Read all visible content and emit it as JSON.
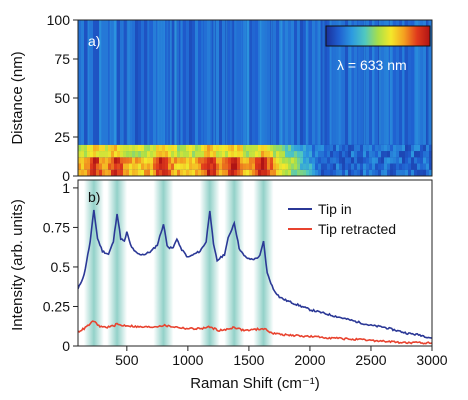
{
  "chart_data": [
    {
      "type": "heatmap",
      "panel_label": "a)",
      "ylabel": "Distance (nm)",
      "xlim": [
        100,
        3000
      ],
      "ylim": [
        0,
        100
      ],
      "yticks": [
        0,
        25,
        50,
        75,
        100
      ],
      "colorbar_label": "λ = 633 nm",
      "colormap": [
        "#1a2f9a",
        "#1f5fd0",
        "#2d9be0",
        "#50c8c0",
        "#a8df4a",
        "#f4e82a",
        "#f4a020",
        "#e03a1c",
        "#b01414"
      ],
      "background_color": "#1e3fae",
      "distance_bands": [
        {
          "from": 0,
          "to": 4,
          "intensity_profile": "high"
        },
        {
          "from": 4,
          "to": 8,
          "intensity_profile": "high"
        },
        {
          "from": 8,
          "to": 12,
          "intensity_profile": "high"
        },
        {
          "from": 12,
          "to": 16,
          "intensity_profile": "medium"
        },
        {
          "from": 16,
          "to": 20,
          "intensity_profile": "medium"
        },
        {
          "from": 20,
          "to": 100,
          "intensity_profile": "background"
        }
      ]
    },
    {
      "type": "line",
      "panel_label": "b)",
      "xlabel": "Raman Shift (cm⁻¹)",
      "ylabel": "Intensity (arb. units)",
      "xlim": [
        100,
        3000
      ],
      "ylim": [
        0,
        1.05
      ],
      "xticks": [
        500,
        1000,
        1500,
        2000,
        2500,
        3000
      ],
      "yticks": [
        0,
        0.25,
        0.5,
        0.75,
        1
      ],
      "ytick_labels": [
        "0",
        "0.25",
        "0.5",
        "0.75",
        "1"
      ],
      "legend_position": "top-right",
      "highlight_bands_x": [
        230,
        420,
        800,
        1180,
        1380,
        1620
      ],
      "highlight_color": "#7fc9bf",
      "series": [
        {
          "name": "Tip in",
          "color": "#2b3896",
          "points": [
            [
              100,
              0.36
            ],
            [
              150,
              0.45
            ],
            [
              200,
              0.66
            ],
            [
              230,
              0.86
            ],
            [
              260,
              0.68
            ],
            [
              300,
              0.6
            ],
            [
              350,
              0.58
            ],
            [
              390,
              0.66
            ],
            [
              420,
              0.84
            ],
            [
              450,
              0.68
            ],
            [
              480,
              0.66
            ],
            [
              500,
              0.72
            ],
            [
              530,
              0.64
            ],
            [
              560,
              0.6
            ],
            [
              600,
              0.58
            ],
            [
              650,
              0.58
            ],
            [
              700,
              0.6
            ],
            [
              750,
              0.64
            ],
            [
              800,
              0.77
            ],
            [
              830,
              0.64
            ],
            [
              850,
              0.62
            ],
            [
              880,
              0.62
            ],
            [
              910,
              0.68
            ],
            [
              940,
              0.62
            ],
            [
              980,
              0.58
            ],
            [
              1000,
              0.56
            ],
            [
              1050,
              0.58
            ],
            [
              1100,
              0.6
            ],
            [
              1150,
              0.66
            ],
            [
              1180,
              0.86
            ],
            [
              1210,
              0.64
            ],
            [
              1240,
              0.54
            ],
            [
              1270,
              0.56
            ],
            [
              1300,
              0.58
            ],
            [
              1330,
              0.68
            ],
            [
              1380,
              0.78
            ],
            [
              1420,
              0.62
            ],
            [
              1460,
              0.57
            ],
            [
              1500,
              0.55
            ],
            [
              1550,
              0.55
            ],
            [
              1590,
              0.57
            ],
            [
              1620,
              0.66
            ],
            [
              1650,
              0.46
            ],
            [
              1700,
              0.36
            ],
            [
              1750,
              0.31
            ],
            [
              1800,
              0.29
            ],
            [
              1900,
              0.26
            ],
            [
              2000,
              0.23
            ],
            [
              2100,
              0.21
            ],
            [
              2200,
              0.19
            ],
            [
              2300,
              0.17
            ],
            [
              2400,
              0.15
            ],
            [
              2500,
              0.13
            ],
            [
              2600,
              0.12
            ],
            [
              2700,
              0.1
            ],
            [
              2800,
              0.08
            ],
            [
              2900,
              0.07
            ],
            [
              3000,
              0.05
            ]
          ]
        },
        {
          "name": "Tip retracted",
          "color": "#e8432f",
          "points": [
            [
              100,
              0.09
            ],
            [
              150,
              0.11
            ],
            [
              200,
              0.14
            ],
            [
              230,
              0.16
            ],
            [
              260,
              0.13
            ],
            [
              300,
              0.12
            ],
            [
              350,
              0.12
            ],
            [
              400,
              0.13
            ],
            [
              420,
              0.14
            ],
            [
              450,
              0.13
            ],
            [
              500,
              0.13
            ],
            [
              600,
              0.12
            ],
            [
              700,
              0.12
            ],
            [
              800,
              0.13
            ],
            [
              900,
              0.12
            ],
            [
              1000,
              0.11
            ],
            [
              1100,
              0.11
            ],
            [
              1180,
              0.12
            ],
            [
              1250,
              0.1
            ],
            [
              1300,
              0.1
            ],
            [
              1380,
              0.12
            ],
            [
              1450,
              0.1
            ],
            [
              1500,
              0.1
            ],
            [
              1620,
              0.11
            ],
            [
              1700,
              0.08
            ],
            [
              1800,
              0.07
            ],
            [
              2000,
              0.06
            ],
            [
              2200,
              0.05
            ],
            [
              2400,
              0.04
            ],
            [
              2600,
              0.03
            ],
            [
              2800,
              0.02
            ],
            [
              3000,
              0.02
            ]
          ]
        }
      ]
    }
  ]
}
